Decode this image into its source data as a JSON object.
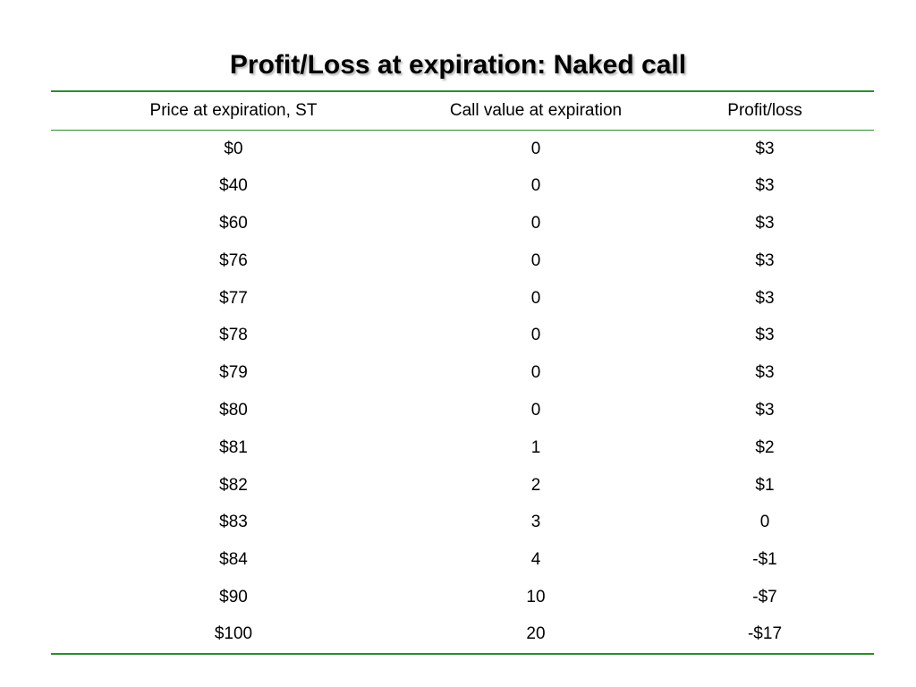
{
  "title": "Profit/Loss at expiration: Naked call",
  "table": {
    "headers": [
      "Price at expiration, ST",
      "Call value at expiration",
      "Profit/loss"
    ],
    "rows": [
      [
        "$0",
        "0",
        "$3"
      ],
      [
        "$40",
        "0",
        "$3"
      ],
      [
        "$60",
        "0",
        "$3"
      ],
      [
        "$76",
        "0",
        "$3"
      ],
      [
        "$77",
        "0",
        "$3"
      ],
      [
        "$78",
        "0",
        "$3"
      ],
      [
        "$79",
        "0",
        "$3"
      ],
      [
        "$80",
        "0",
        "$3"
      ],
      [
        "$81",
        "1",
        "$2"
      ],
      [
        "$82",
        "2",
        "$1"
      ],
      [
        "$83",
        "3",
        "0"
      ],
      [
        "$84",
        "4",
        "-$1"
      ],
      [
        "$90",
        "10",
        "-$7"
      ],
      [
        "$100",
        "20",
        "-$17"
      ]
    ]
  },
  "colors": {
    "rule": "#2e8b2e",
    "title_shadow": "#b8b8b8"
  }
}
